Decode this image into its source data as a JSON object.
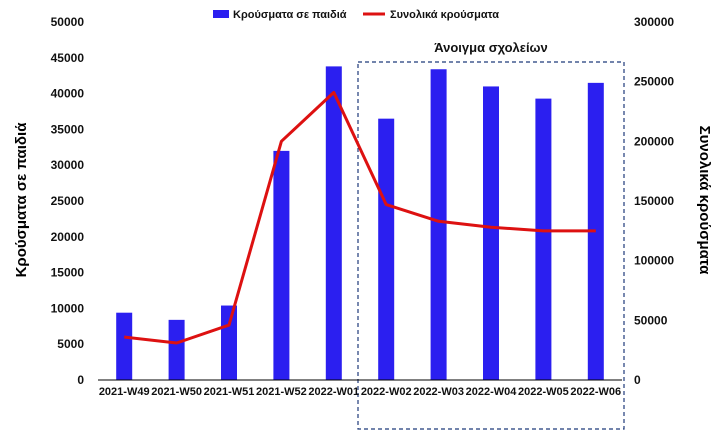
{
  "chart_data": {
    "type": "bar",
    "categories": [
      "2021-W49",
      "2021-W50",
      "2021-W51",
      "2021-W52",
      "2022-W01",
      "2022-W02",
      "2022-W03",
      "2022-W04",
      "2022-W05",
      "2022-W06"
    ],
    "series": [
      {
        "name": "Κρούσματα σε παιδιά",
        "type": "bar",
        "axis": "left",
        "color": "#2b1ff0",
        "values": [
          9400,
          8400,
          10400,
          32000,
          43800,
          36500,
          43400,
          41000,
          39300,
          41500
        ]
      },
      {
        "name": "Συνολικά κρούσματα",
        "type": "line",
        "axis": "right",
        "color": "#dd1111",
        "values": [
          36000,
          31000,
          46000,
          200000,
          241000,
          147000,
          133000,
          128000,
          125000,
          125000
        ]
      }
    ],
    "ylabel": "Κρούσματα σε παιδιά",
    "y2label": "Συνολικά κρούσματα",
    "ylim": [
      0,
      50000
    ],
    "y2lim": [
      0,
      300000
    ],
    "yticks": [
      0,
      5000,
      10000,
      15000,
      20000,
      25000,
      30000,
      35000,
      40000,
      45000,
      50000
    ],
    "y2ticks": [
      0,
      50000,
      100000,
      150000,
      200000,
      250000,
      300000
    ],
    "legend_position": "top-center",
    "grid": false,
    "annotation": {
      "text": "Άνοιγμα σχολείων",
      "from": "2022-W02",
      "to": "2022-W06"
    }
  }
}
